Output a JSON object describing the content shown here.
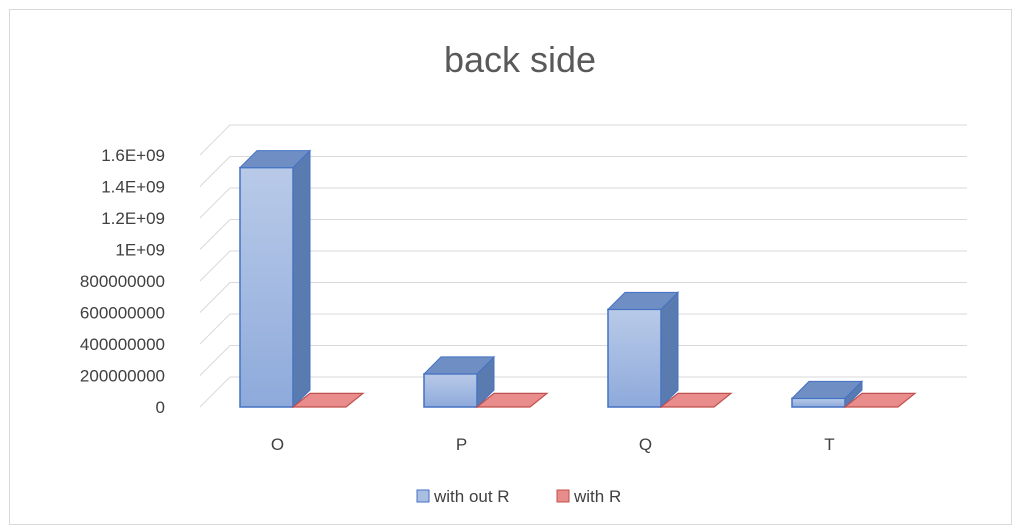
{
  "chart_data": {
    "type": "bar",
    "title": "back side",
    "categories": [
      "O",
      "P",
      "Q",
      "T"
    ],
    "series": [
      {
        "name": "with out R",
        "values": [
          1520000000,
          210000000,
          620000000,
          55000000
        ]
      },
      {
        "name": "with R",
        "values": [
          0,
          0,
          0,
          0
        ]
      }
    ],
    "ylim": [
      0,
      1600000000
    ],
    "y_ticks": [
      "0",
      "200000000",
      "400000000",
      "600000000",
      "800000000",
      "1E+09",
      "1.2E+09",
      "1.4E+09",
      "1.6E+09"
    ],
    "grid": true,
    "legend_position": "bottom",
    "style": "3d-clustered-column"
  },
  "colors": {
    "series_1": "#a9bfe2",
    "series_1_dark": "#4a6fa5",
    "series_2": "#e88c8c",
    "series_2_dark": "#b44a4a",
    "grid": "#d9d9d9"
  }
}
